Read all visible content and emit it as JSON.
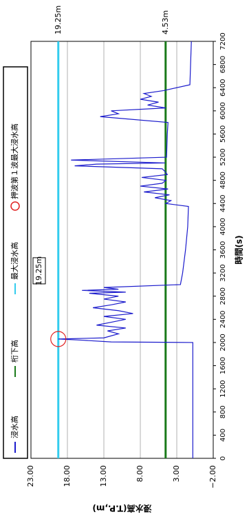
{
  "chart_data": {
    "type": "line",
    "x_label": "時間(s)",
    "y_label": "浸水高(T.P.,m)",
    "x": [
      0,
      2000,
      2010,
      2040,
      2060,
      2080,
      2150,
      2200,
      2250,
      2300,
      2350,
      2400,
      2450,
      2500,
      2550,
      2600,
      2650,
      2700,
      2750,
      2800,
      2850,
      2870,
      2900,
      2920,
      2950,
      3000,
      3200,
      3600,
      4000,
      4350,
      4400,
      4450,
      4500,
      4550,
      4600,
      4650,
      4700,
      4750,
      4800,
      4850,
      4900,
      4950,
      5000,
      5050,
      5080,
      5100,
      5150,
      5200,
      5600,
      5800,
      5900,
      5950,
      6000,
      6050,
      6100,
      6150,
      6200,
      6250,
      6300,
      6350,
      6450,
      7200
    ],
    "series": [
      {
        "name": "浸水高",
        "color": "#1a1acc",
        "values": [
          0.8,
          0.8,
          12,
          16,
          19.25,
          13,
          11,
          12.5,
          10,
          14,
          12,
          10,
          13,
          9,
          11,
          14.5,
          12,
          10,
          13,
          11,
          15,
          10,
          16,
          11,
          13,
          2.5,
          2.2,
          1.8,
          1.5,
          1.4,
          4.5,
          3.8,
          6,
          4,
          7.5,
          4.2,
          8,
          5,
          4.5,
          7.8,
          4.3,
          4.6,
          5,
          17,
          14,
          4.6,
          17.5,
          4.4,
          4.3,
          4.2,
          13.5,
          11,
          12,
          4.5,
          7,
          5.5,
          8,
          6.5,
          7.5,
          4.8,
          1.2,
          1.0
        ]
      }
    ],
    "reference_lines": [
      {
        "name": "桁下高",
        "color": "#1a7a1a",
        "value": 4.53,
        "label": "4.53m"
      },
      {
        "name": "最大浸水高",
        "color": "#33ccee",
        "value": 19.25,
        "label": "19.25m"
      }
    ],
    "peak": {
      "name": "押波第１波最大浸水高",
      "color": "#e02020",
      "x": 2060,
      "value": 19.25,
      "label": "19.25m"
    },
    "xlim": [
      0,
      7200
    ],
    "xticks": [
      0,
      400,
      800,
      1200,
      1600,
      2000,
      2400,
      2800,
      3200,
      3600,
      4000,
      4400,
      4800,
      5200,
      5600,
      6000,
      6400,
      6800,
      7200
    ],
    "ylim": [
      -2,
      23
    ],
    "yticks": [
      {
        "value": -2,
        "label": "−2.00"
      },
      {
        "value": 3,
        "label": "3.00"
      },
      {
        "value": 8,
        "label": "8.00"
      },
      {
        "value": 13,
        "label": "13.00"
      },
      {
        "value": 18,
        "label": "18.00"
      },
      {
        "value": 23,
        "label": "23.00"
      }
    ],
    "grid": true
  }
}
